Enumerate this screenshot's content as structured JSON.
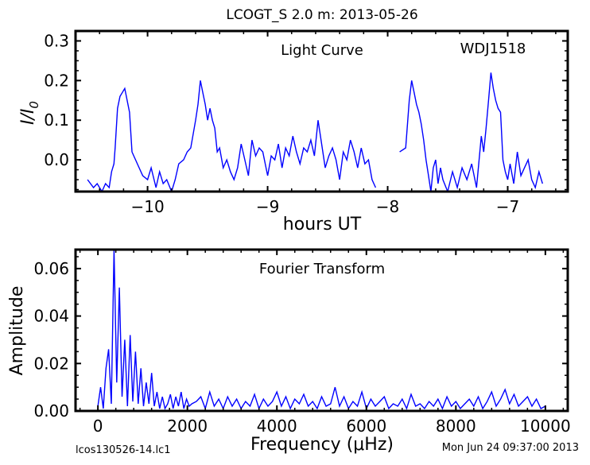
{
  "header": {
    "title": "LCOGT_S 2.0 m:  2013-05-26"
  },
  "footer": {
    "filename": "lcos130526-14.lc1",
    "timestamp": "Mon Jun 24 09:37:00 2013"
  },
  "chart_data": [
    {
      "type": "line",
      "annotations": [
        "Light Curve",
        "WDJ1518"
      ],
      "xlabel": "hours UT",
      "ylabel": "I/I",
      "ylabel_sub": "0",
      "xlim": [
        -10.6,
        -6.5
      ],
      "ylim": [
        -0.08,
        0.325
      ],
      "xticks": [
        -10,
        -9,
        -8,
        -7
      ],
      "xtick_labels": [
        "−10",
        "−9",
        "−8",
        "−7"
      ],
      "yticks": [
        0.0,
        0.1,
        0.2,
        0.3
      ],
      "ytick_labels": [
        "0.0",
        "0.1",
        "0.2",
        "0.3"
      ],
      "color": "#0000ff",
      "series": [
        {
          "x": [
            -10.5,
            -10.45,
            -10.42,
            -10.38,
            -10.35,
            -10.32,
            -10.3,
            -10.28,
            -10.27,
            -10.25,
            -10.23,
            -10.21,
            -10.19,
            -10.17,
            -10.15,
            -10.13,
            -10.1,
            -10.07,
            -10.04,
            -10.0,
            -9.97,
            -9.93,
            -9.9,
            -9.87,
            -9.84,
            -9.8,
            -9.77,
            -9.74,
            -9.7,
            -9.67,
            -9.64,
            -9.6,
            -9.58,
            -9.56,
            -9.54,
            -9.52,
            -9.5,
            -9.48,
            -9.46,
            -9.44,
            -9.42,
            -9.4,
            -9.37,
            -9.34,
            -9.31,
            -9.28,
            -9.25,
            -9.22,
            -9.19,
            -9.16,
            -9.13,
            -9.1,
            -9.07,
            -9.04,
            -9.0,
            -8.97,
            -8.94,
            -8.91,
            -8.88,
            -8.85,
            -8.82,
            -8.79,
            -8.76,
            -8.73,
            -8.7,
            -8.67,
            -8.64,
            -8.61,
            -8.58,
            -8.55,
            -8.52,
            -8.49,
            -8.46,
            -8.43,
            -8.4,
            -8.37,
            -8.34,
            -8.31,
            -8.28,
            -8.25,
            -8.22,
            -8.19,
            -8.16,
            -8.13,
            -8.1
          ],
          "y": [
            -0.05,
            -0.07,
            -0.06,
            -0.08,
            -0.06,
            -0.07,
            -0.03,
            -0.01,
            0.03,
            0.13,
            0.16,
            0.17,
            0.18,
            0.15,
            0.12,
            0.02,
            0.0,
            -0.02,
            -0.04,
            -0.05,
            -0.02,
            -0.07,
            -0.03,
            -0.06,
            -0.05,
            -0.08,
            -0.05,
            -0.01,
            0.0,
            0.02,
            0.03,
            0.1,
            0.14,
            0.2,
            0.17,
            0.14,
            0.1,
            0.13,
            0.1,
            0.08,
            0.02,
            0.03,
            -0.02,
            0.0,
            -0.03,
            -0.05,
            -0.02,
            0.04,
            0.0,
            -0.04,
            0.05,
            0.01,
            0.03,
            0.02,
            -0.04,
            0.01,
            0.0,
            0.04,
            -0.02,
            0.03,
            0.01,
            0.06,
            0.02,
            -0.01,
            0.03,
            0.02,
            0.05,
            0.01,
            0.1,
            0.04,
            -0.02,
            0.01,
            0.03,
            0.0,
            -0.05,
            0.02,
            0.0,
            0.05,
            0.02,
            -0.02,
            0.03,
            -0.01,
            0.0,
            -0.05,
            -0.07
          ]
        },
        {
          "x": [
            -7.9,
            -7.85,
            -7.82,
            -7.8,
            -7.78,
            -7.76,
            -7.74,
            -7.72,
            -7.7,
            -7.68,
            -7.66,
            -7.64,
            -7.62,
            -7.6,
            -7.58,
            -7.56,
            -7.54,
            -7.5,
            -7.46,
            -7.42,
            -7.38,
            -7.34,
            -7.3,
            -7.26,
            -7.22,
            -7.2,
            -7.18,
            -7.16,
            -7.14,
            -7.12,
            -7.1,
            -7.08,
            -7.06,
            -7.04,
            -7.02,
            -7.0,
            -6.98,
            -6.95,
            -6.92,
            -6.89,
            -6.86,
            -6.83,
            -6.8,
            -6.77,
            -6.74,
            -6.71
          ],
          "y": [
            0.02,
            0.03,
            0.15,
            0.2,
            0.17,
            0.14,
            0.12,
            0.09,
            0.05,
            0.0,
            -0.04,
            -0.08,
            -0.02,
            0.0,
            -0.06,
            -0.02,
            -0.05,
            -0.08,
            -0.03,
            -0.07,
            -0.02,
            -0.05,
            -0.01,
            -0.07,
            0.06,
            0.02,
            0.08,
            0.15,
            0.22,
            0.18,
            0.15,
            0.13,
            0.12,
            0.0,
            -0.03,
            -0.05,
            -0.01,
            -0.06,
            0.02,
            -0.04,
            -0.02,
            0.0,
            -0.05,
            -0.07,
            -0.03,
            -0.06
          ]
        }
      ]
    },
    {
      "type": "line",
      "annotations": [
        "Fourier Transform"
      ],
      "xlabel": "Frequency (μHz)",
      "ylabel": "Amplitude",
      "xlim": [
        -500,
        10500
      ],
      "ylim": [
        0,
        0.068
      ],
      "xticks": [
        0,
        2000,
        4000,
        6000,
        8000,
        10000
      ],
      "xtick_labels": [
        "0",
        "2000",
        "4000",
        "6000",
        "8000",
        "10000"
      ],
      "yticks": [
        0.0,
        0.02,
        0.04,
        0.06
      ],
      "ytick_labels": [
        "0.00",
        "0.02",
        "0.04",
        "0.06"
      ],
      "color": "#0000ff",
      "series": [
        {
          "x": [
            0,
            60,
            120,
            180,
            240,
            300,
            360,
            420,
            480,
            540,
            600,
            660,
            720,
            780,
            840,
            900,
            960,
            1020,
            1080,
            1140,
            1200,
            1260,
            1320,
            1380,
            1440,
            1500,
            1560,
            1620,
            1680,
            1740,
            1800,
            1860,
            1920,
            1980,
            2040,
            2100,
            2200,
            2300,
            2400,
            2500,
            2600,
            2700,
            2800,
            2900,
            3000,
            3100,
            3200,
            3300,
            3400,
            3500,
            3600,
            3700,
            3800,
            3900,
            4000,
            4100,
            4200,
            4300,
            4400,
            4500,
            4600,
            4700,
            4800,
            4900,
            5000,
            5100,
            5200,
            5300,
            5400,
            5500,
            5600,
            5700,
            5800,
            5900,
            6000,
            6100,
            6200,
            6300,
            6400,
            6500,
            6600,
            6700,
            6800,
            6900,
            7000,
            7100,
            7200,
            7300,
            7400,
            7500,
            7600,
            7700,
            7800,
            7900,
            8000,
            8100,
            8200,
            8300,
            8400,
            8500,
            8600,
            8700,
            8800,
            8900,
            9000,
            9100,
            9200,
            9300,
            9400,
            9500,
            9600,
            9700,
            9800,
            9900,
            10000
          ],
          "y": [
            0.002,
            0.01,
            0.001,
            0.018,
            0.026,
            0.003,
            0.068,
            0.012,
            0.052,
            0.006,
            0.03,
            0.002,
            0.032,
            0.004,
            0.025,
            0.003,
            0.018,
            0.002,
            0.012,
            0.003,
            0.016,
            0.002,
            0.008,
            0.001,
            0.006,
            0.001,
            0.003,
            0.007,
            0.001,
            0.006,
            0.002,
            0.008,
            0.001,
            0.005,
            0.002,
            0.003,
            0.004,
            0.006,
            0.001,
            0.008,
            0.002,
            0.005,
            0.001,
            0.006,
            0.002,
            0.005,
            0.001,
            0.004,
            0.002,
            0.007,
            0.001,
            0.005,
            0.002,
            0.004,
            0.008,
            0.002,
            0.006,
            0.001,
            0.005,
            0.003,
            0.007,
            0.002,
            0.004,
            0.001,
            0.006,
            0.002,
            0.003,
            0.01,
            0.002,
            0.006,
            0.001,
            0.004,
            0.002,
            0.008,
            0.001,
            0.005,
            0.002,
            0.004,
            0.006,
            0.001,
            0.003,
            0.002,
            0.005,
            0.001,
            0.007,
            0.002,
            0.003,
            0.001,
            0.004,
            0.002,
            0.005,
            0.001,
            0.006,
            0.002,
            0.004,
            0.001,
            0.003,
            0.005,
            0.002,
            0.006,
            0.001,
            0.004,
            0.008,
            0.002,
            0.005,
            0.009,
            0.003,
            0.007,
            0.002,
            0.004,
            0.006,
            0.002,
            0.005,
            0.001,
            0.002
          ]
        }
      ]
    }
  ]
}
